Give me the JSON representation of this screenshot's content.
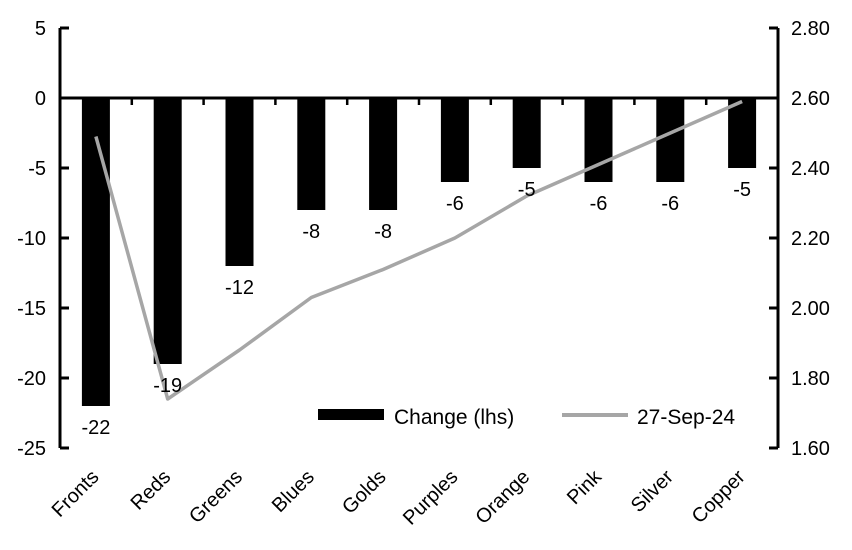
{
  "chart_data": {
    "type": "bar",
    "subtype": "bar-with-line-dual-axis",
    "title": "",
    "categories": [
      "Fronts",
      "Reds",
      "Greens",
      "Blues",
      "Golds",
      "Purples",
      "Orange",
      "Pink",
      "Silver",
      "Copper"
    ],
    "series": [
      {
        "name": "Change (lhs)",
        "type": "bar",
        "axis": "left",
        "color": "#000000",
        "values": [
          -22,
          -19,
          -12,
          -8,
          -8,
          -6,
          -5,
          -6,
          -6,
          -5
        ],
        "data_labels": [
          "-22",
          "-19",
          "-12",
          "-8",
          "-8",
          "-6",
          "-5",
          "-6",
          "-6",
          "-5"
        ]
      },
      {
        "name": "27-Sep-24",
        "type": "line",
        "axis": "right",
        "color": "#a6a6a6",
        "values": [
          2.49,
          1.74,
          1.88,
          2.03,
          2.11,
          2.2,
          2.32,
          2.41,
          2.5,
          2.59
        ]
      }
    ],
    "axes": {
      "left": {
        "min": -25,
        "max": 5,
        "tick_labels": [
          "5",
          "0",
          "-5",
          "-10",
          "-15",
          "-20",
          "-25"
        ],
        "tick_values": [
          5,
          0,
          -5,
          -10,
          -15,
          -20,
          -25
        ]
      },
      "right": {
        "min": 1.6,
        "max": 2.8,
        "tick_labels": [
          "2.80",
          "2.60",
          "2.40",
          "2.20",
          "2.00",
          "1.80",
          "1.60"
        ],
        "tick_values": [
          2.8,
          2.6,
          2.4,
          2.2,
          2.0,
          1.8,
          1.6
        ]
      }
    },
    "grid": false,
    "legend": {
      "position": "inside-bottom",
      "items": [
        {
          "label": "Change (lhs)",
          "swatch": "bar",
          "color": "#000000"
        },
        {
          "label": "27-Sep-24",
          "swatch": "line",
          "color": "#a6a6a6"
        }
      ]
    },
    "colors": {
      "axis": "#000000",
      "bar": "#000000",
      "line": "#a6a6a6",
      "text": "#000000",
      "background": "#ffffff"
    }
  }
}
